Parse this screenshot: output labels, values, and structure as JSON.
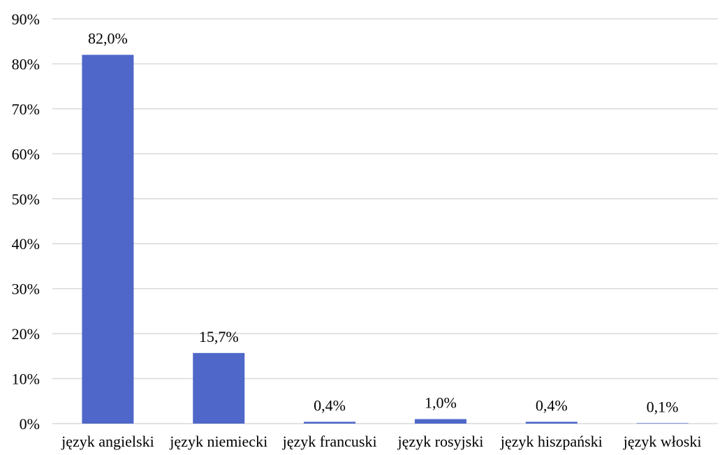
{
  "chart_data": {
    "type": "bar",
    "categories": [
      "język angielski",
      "język niemiecki",
      "język francuski",
      "język rosyjski",
      "język hiszpański",
      "język włoski"
    ],
    "values": [
      82.0,
      15.7,
      0.4,
      1.0,
      0.4,
      0.1
    ],
    "data_labels": [
      "82,0%",
      "15,7%",
      "0,4%",
      "1,0%",
      "0,4%",
      "0,1%"
    ],
    "y_ticks": [
      0,
      10,
      20,
      30,
      40,
      50,
      60,
      70,
      80,
      90
    ],
    "y_tick_labels": [
      "0%",
      "10%",
      "20%",
      "30%",
      "40%",
      "50%",
      "60%",
      "70%",
      "80%",
      "90%"
    ],
    "ylim": [
      0,
      90
    ],
    "title": "",
    "xlabel": "",
    "ylabel": "",
    "grid": true,
    "legend": "none",
    "bar_color": "#4f67c8"
  }
}
